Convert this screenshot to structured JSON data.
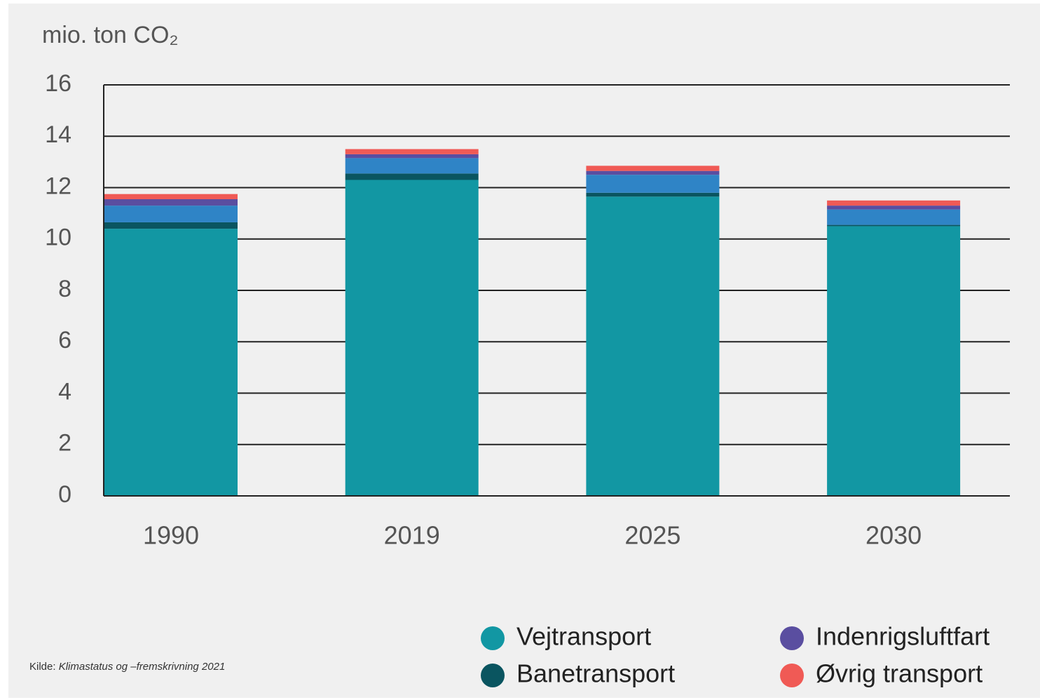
{
  "chart_data": {
    "type": "stacked_bar",
    "y_axis_label": "mio. ton CO₂",
    "categories": [
      "1990",
      "2019",
      "2025",
      "2030"
    ],
    "series": [
      {
        "name": "Vejtransport",
        "color": "#1297a3",
        "values": [
          10.4,
          12.3,
          11.65,
          10.5
        ]
      },
      {
        "name": "Banetransport",
        "color": "#0a5560",
        "values": [
          0.25,
          0.25,
          0.15,
          0.05
        ]
      },
      {
        "color": "#2f84c6",
        "values": [
          0.65,
          0.6,
          0.7,
          0.6
        ]
      },
      {
        "name": "Indenrigsluftfart",
        "color": "#5a4ea0",
        "values": [
          0.25,
          0.15,
          0.15,
          0.15
        ]
      },
      {
        "name": "Øvrig transport",
        "color": "#f05a55",
        "values": [
          0.2,
          0.2,
          0.2,
          0.2
        ]
      }
    ],
    "ylim": [
      0,
      16
    ],
    "yticks": [
      0,
      2,
      4,
      6,
      8,
      10,
      12,
      14,
      16
    ],
    "grid": true,
    "source_label": "Kilde:",
    "source": "Klimastatus og –fremskrivning 2021"
  }
}
